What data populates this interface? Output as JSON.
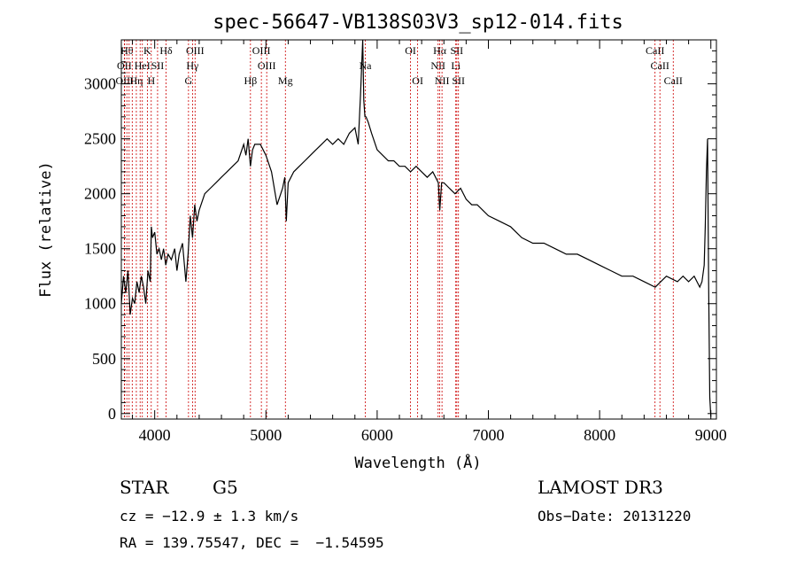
{
  "chart_data": {
    "type": "line",
    "title": "spec-56647-VB138S03V3_sp12-014.fits",
    "xlabel": "Wavelength (Å)",
    "ylabel": "Flux (relative)",
    "xlim": [
      3700,
      9050
    ],
    "ylim": [
      -50,
      3400
    ],
    "x_ticks": [
      4000,
      5000,
      6000,
      7000,
      8000,
      9000
    ],
    "y_ticks": [
      0,
      500,
      1000,
      1500,
      2000,
      2500,
      3000
    ],
    "grid": false,
    "series": [
      {
        "x": [
          3700,
          3720,
          3740,
          3760,
          3780,
          3800,
          3820,
          3840,
          3860,
          3880,
          3900,
          3920,
          3940,
          3960,
          3970,
          3980,
          4000,
          4020,
          4040,
          4060,
          4080,
          4100,
          4120,
          4150,
          4180,
          4200,
          4220,
          4250,
          4280,
          4300,
          4320,
          4340,
          4360,
          4380,
          4400,
          4450,
          4500,
          4550,
          4600,
          4650,
          4700,
          4750,
          4800,
          4820,
          4840,
          4861,
          4880,
          4900,
          4950,
          5000,
          5050,
          5100,
          5150,
          5170,
          5183,
          5200,
          5250,
          5300,
          5350,
          5400,
          5450,
          5500,
          5550,
          5600,
          5650,
          5700,
          5750,
          5800,
          5830,
          5850,
          5870,
          5880,
          5890,
          5900,
          5920,
          5950,
          6000,
          6050,
          6100,
          6150,
          6200,
          6250,
          6300,
          6350,
          6400,
          6450,
          6500,
          6550,
          6563,
          6580,
          6600,
          6650,
          6700,
          6750,
          6800,
          6850,
          6900,
          6950,
          7000,
          7100,
          7200,
          7300,
          7400,
          7500,
          7600,
          7700,
          7800,
          7900,
          8000,
          8100,
          8200,
          8300,
          8400,
          8500,
          8600,
          8700,
          8750,
          8800,
          8850,
          8900,
          8920,
          8940,
          8950,
          8960,
          8970,
          8980,
          8990,
          9000
        ],
        "y": [
          1000,
          1250,
          1100,
          1300,
          900,
          1050,
          1000,
          1200,
          1100,
          1250,
          1150,
          1000,
          1300,
          1200,
          1700,
          1600,
          1650,
          1450,
          1500,
          1400,
          1500,
          1350,
          1450,
          1400,
          1500,
          1300,
          1450,
          1550,
          1200,
          1450,
          1800,
          1600,
          1900,
          1750,
          1850,
          2000,
          2050,
          2100,
          2150,
          2200,
          2250,
          2300,
          2450,
          2350,
          2500,
          2250,
          2400,
          2450,
          2450,
          2350,
          2200,
          1900,
          2050,
          2150,
          1750,
          2100,
          2200,
          2250,
          2300,
          2350,
          2400,
          2450,
          2500,
          2450,
          2500,
          2450,
          2550,
          2600,
          2450,
          2900,
          3400,
          2850,
          2700,
          2700,
          2650,
          2550,
          2400,
          2350,
          2300,
          2300,
          2250,
          2250,
          2200,
          2250,
          2200,
          2150,
          2200,
          2100,
          1850,
          2100,
          2100,
          2050,
          2000,
          2050,
          1950,
          1900,
          1900,
          1850,
          1800,
          1750,
          1700,
          1600,
          1550,
          1550,
          1500,
          1450,
          1450,
          1400,
          1350,
          1300,
          1250,
          1250,
          1200,
          1150,
          1250,
          1200,
          1250,
          1200,
          1250,
          1150,
          1200,
          1350,
          1700,
          2200,
          2500,
          1200,
          150,
          -30
        ]
      }
    ],
    "lines": [
      {
        "wl": 3750,
        "label": "Hθ",
        "row": 0
      },
      {
        "wl": 3727,
        "label": "OII",
        "row": 1
      },
      {
        "wl": 3730,
        "label": "OIII",
        "row": 2
      },
      {
        "wl": 3770,
        "label": "",
        "row": -1
      },
      {
        "wl": 3798,
        "label": "",
        "row": -1
      },
      {
        "wl": 3835,
        "label": "Hη",
        "row": 2
      },
      {
        "wl": 3869,
        "label": "",
        "row": -1
      },
      {
        "wl": 3889,
        "label": "HeI",
        "row": 1
      },
      {
        "wl": 3934,
        "label": "K",
        "row": 0
      },
      {
        "wl": 3969,
        "label": "H",
        "row": 2
      },
      {
        "wl": 4026,
        "label": "SII",
        "row": 1
      },
      {
        "wl": 4102,
        "label": "Hδ",
        "row": 0
      },
      {
        "wl": 4304,
        "label": "G",
        "row": 2
      },
      {
        "wl": 4340,
        "label": "Hγ",
        "row": 1
      },
      {
        "wl": 4363,
        "label": "OIII",
        "row": 0
      },
      {
        "wl": 4861,
        "label": "Hβ",
        "row": 2
      },
      {
        "wl": 4959,
        "label": "OIII",
        "row": 0
      },
      {
        "wl": 5007,
        "label": "OIII",
        "row": 1
      },
      {
        "wl": 5175,
        "label": "Mg",
        "row": 2
      },
      {
        "wl": 5893,
        "label": "Na",
        "row": 1
      },
      {
        "wl": 6300,
        "label": "OI",
        "row": 0
      },
      {
        "wl": 6364,
        "label": "OI",
        "row": 2
      },
      {
        "wl": 6548,
        "label": "NII",
        "row": 1
      },
      {
        "wl": 6563,
        "label": "Hα",
        "row": 0
      },
      {
        "wl": 6583,
        "label": "NII",
        "row": 2
      },
      {
        "wl": 6707,
        "label": "Li",
        "row": 1
      },
      {
        "wl": 6716,
        "label": "SII",
        "row": 0
      },
      {
        "wl": 6731,
        "label": "SII",
        "row": 2
      },
      {
        "wl": 8498,
        "label": "CaII",
        "row": 0
      },
      {
        "wl": 8542,
        "label": "CaII",
        "row": 1
      },
      {
        "wl": 8662,
        "label": "CaII",
        "row": 2
      }
    ]
  },
  "info": {
    "class": "STAR",
    "subclass": "G5",
    "survey": "LAMOST DR3",
    "cz": "cz = −12.9 ± 1.3 km/s",
    "obs_date": "Obs−Date: 20131220",
    "radec": "RA = 139.75547, DEC =  −1.54595"
  }
}
